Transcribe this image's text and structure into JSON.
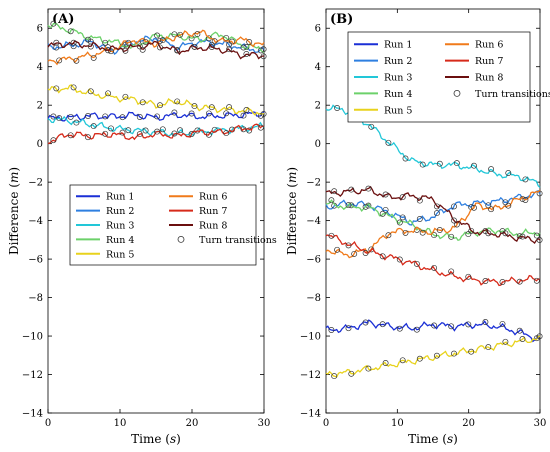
{
  "chart_data": [
    {
      "type": "line",
      "panel_label": "(A)",
      "xlabel": "Time",
      "xunit": "s",
      "ylabel": "Difference",
      "yunit": "m",
      "xlim": [
        0,
        30
      ],
      "ylim": [
        -14,
        7
      ],
      "xticks": [
        "0",
        "10",
        "20",
        "30"
      ],
      "yticks": [
        "6",
        "4",
        "2",
        "0",
        "-2",
        "-4",
        "-6",
        "-8",
        "-10",
        "-12",
        "-14"
      ],
      "legend_position": "center-right",
      "marker_legend": "Turn transitions",
      "series": [
        {
          "name": "Run 1",
          "color": "#1a2fd6",
          "x": [
            0,
            3,
            6,
            9,
            12,
            15,
            18,
            21,
            24,
            27,
            30
          ],
          "values": [
            1.3,
            1.35,
            1.45,
            1.4,
            1.5,
            1.35,
            1.5,
            1.4,
            1.45,
            1.5,
            1.6
          ]
        },
        {
          "name": "Run 2",
          "color": "#2e7fe0",
          "x": [
            0,
            3,
            6,
            9,
            12,
            15,
            18,
            21,
            24,
            27,
            30
          ],
          "values": [
            5.0,
            5.1,
            5.3,
            4.8,
            5.3,
            5.5,
            5.0,
            5.3,
            5.2,
            5.0,
            4.8
          ]
        },
        {
          "name": "Run 3",
          "color": "#22c7d8",
          "x": [
            0,
            3,
            6,
            9,
            12,
            15,
            18,
            21,
            24,
            27,
            30
          ],
          "values": [
            1.3,
            1.2,
            1.0,
            0.8,
            0.7,
            0.6,
            0.5,
            0.6,
            0.7,
            0.8,
            0.9
          ]
        },
        {
          "name": "Run 4",
          "color": "#6cd16a",
          "x": [
            0,
            3,
            6,
            9,
            12,
            15,
            18,
            21,
            24,
            27,
            30
          ],
          "values": [
            6.2,
            5.9,
            5.5,
            5.3,
            5.0,
            5.6,
            5.6,
            5.4,
            5.7,
            5.1,
            4.9
          ]
        },
        {
          "name": "Run 5",
          "color": "#e8d21c",
          "x": [
            0,
            3,
            6,
            9,
            12,
            15,
            18,
            21,
            24,
            27,
            30
          ],
          "values": [
            2.8,
            2.9,
            2.6,
            2.4,
            2.3,
            2.0,
            2.2,
            1.9,
            1.8,
            1.7,
            1.6
          ]
        },
        {
          "name": "Run 6",
          "color": "#f07a1a",
          "x": [
            0,
            3,
            6,
            9,
            12,
            15,
            18,
            21,
            24,
            27,
            30
          ],
          "values": [
            4.3,
            4.4,
            4.6,
            4.9,
            5.4,
            5.2,
            5.6,
            5.8,
            5.3,
            5.4,
            5.1
          ]
        },
        {
          "name": "Run 7",
          "color": "#d62a1a",
          "x": [
            0,
            3,
            6,
            9,
            12,
            15,
            18,
            21,
            24,
            27,
            30
          ],
          "values": [
            0.1,
            0.5,
            0.4,
            0.5,
            0.3,
            0.5,
            0.4,
            0.6,
            0.6,
            0.8,
            0.9
          ]
        },
        {
          "name": "Run 8",
          "color": "#6b0f0f",
          "x": [
            0,
            3,
            6,
            9,
            12,
            15,
            18,
            21,
            24,
            27,
            30
          ],
          "values": [
            5.1,
            5.2,
            5.1,
            4.9,
            5.0,
            5.2,
            4.8,
            5.0,
            4.9,
            4.6,
            4.6
          ]
        }
      ]
    },
    {
      "type": "line",
      "panel_label": "(B)",
      "xlabel": "Time",
      "xunit": "s",
      "ylabel": "Difference",
      "yunit": "m",
      "xlim": [
        0,
        30
      ],
      "ylim": [
        -14,
        7
      ],
      "xticks": [
        "0",
        "10",
        "20",
        "30"
      ],
      "yticks": [
        "6",
        "4",
        "2",
        "0",
        "-2",
        "-4",
        "-6",
        "-8",
        "-10",
        "-12",
        "-14"
      ],
      "legend_position": "top-right",
      "marker_legend": "Turn transitions",
      "series": [
        {
          "name": "Run 1",
          "color": "#1a2fd6",
          "x": [
            0,
            3,
            6,
            9,
            12,
            15,
            18,
            21,
            24,
            27,
            30
          ],
          "values": [
            -9.7,
            -9.6,
            -9.3,
            -9.5,
            -9.6,
            -9.4,
            -9.5,
            -9.4,
            -9.5,
            -9.8,
            -10.2
          ]
        },
        {
          "name": "Run 2",
          "color": "#2e7fe0",
          "x": [
            0,
            3,
            6,
            9,
            12,
            15,
            18,
            21,
            24,
            27,
            30
          ],
          "values": [
            -3.3,
            -3.1,
            -3.2,
            -3.6,
            -4.1,
            -3.8,
            -3.2,
            -3.1,
            -3.0,
            -2.8,
            -2.6
          ]
        },
        {
          "name": "Run 3",
          "color": "#22c7d8",
          "x": [
            0,
            3,
            6,
            9,
            12,
            15,
            18,
            21,
            24,
            27,
            30
          ],
          "values": [
            1.9,
            1.7,
            1.0,
            0.0,
            -0.9,
            -1.1,
            -1.1,
            -1.3,
            -1.6,
            -1.7,
            -2.1
          ]
        },
        {
          "name": "Run 4",
          "color": "#6cd16a",
          "x": [
            0,
            3,
            6,
            9,
            12,
            15,
            18,
            21,
            24,
            27,
            30
          ],
          "values": [
            -3.1,
            -3.3,
            -3.3,
            -3.8,
            -4.2,
            -4.7,
            -4.9,
            -4.6,
            -4.5,
            -4.7,
            -4.6
          ]
        },
        {
          "name": "Run 5",
          "color": "#e8d21c",
          "x": [
            0,
            3,
            6,
            9,
            12,
            15,
            18,
            21,
            24,
            27,
            30
          ],
          "values": [
            -12.0,
            -11.9,
            -11.7,
            -11.5,
            -11.3,
            -11.1,
            -10.9,
            -10.7,
            -10.5,
            -10.3,
            -10.1
          ]
        },
        {
          "name": "Run 6",
          "color": "#f07a1a",
          "x": [
            0,
            3,
            6,
            9,
            12,
            15,
            18,
            21,
            24,
            27,
            30
          ],
          "values": [
            -5.5,
            -5.8,
            -5.5,
            -4.6,
            -4.5,
            -4.6,
            -4.4,
            -3.2,
            -3.4,
            -2.9,
            -2.5
          ]
        },
        {
          "name": "Run 7",
          "color": "#d62a1a",
          "x": [
            0,
            3,
            6,
            9,
            12,
            15,
            18,
            21,
            24,
            27,
            30
          ],
          "values": [
            -4.7,
            -5.2,
            -5.6,
            -5.9,
            -6.2,
            -6.6,
            -6.9,
            -7.1,
            -7.2,
            -7.1,
            -7.0
          ]
        },
        {
          "name": "Run 8",
          "color": "#6b0f0f",
          "x": [
            0,
            3,
            6,
            9,
            12,
            15,
            18,
            21,
            24,
            27,
            30
          ],
          "values": [
            -2.6,
            -2.5,
            -2.4,
            -2.8,
            -2.7,
            -2.9,
            -3.9,
            -4.6,
            -4.7,
            -4.9,
            -5.0
          ]
        }
      ]
    }
  ]
}
